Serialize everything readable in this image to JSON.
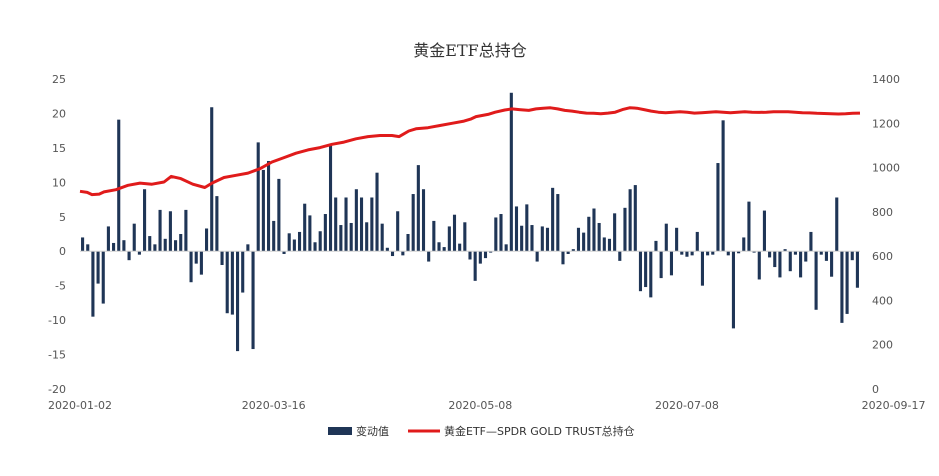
{
  "chart_data": {
    "type": "bar+line",
    "title": "黄金ETF总持仓",
    "left_axis": {
      "ylim": [
        -20,
        25
      ],
      "ticks": [
        "25",
        "20",
        "15",
        "10",
        "5",
        "0",
        "-5",
        "-10",
        "-15",
        "-20"
      ]
    },
    "right_axis": {
      "ylim": [
        0,
        1400
      ],
      "ticks": [
        "1400",
        "1200",
        "1000",
        "800",
        "600",
        "400",
        "200",
        "0"
      ]
    },
    "x_tick_labels": [
      "2020-01-02",
      "2020-03-16",
      "2020-05-08",
      "2020-07-08",
      "2020-09-17"
    ],
    "x_tick_indices": [
      0,
      37,
      77,
      117,
      157
    ],
    "legend_position": "bottom",
    "colors": {
      "bar": "#1f3556",
      "line": "#e01b1b"
    },
    "series": [
      {
        "name": "变动值",
        "kind": "bar",
        "axis": "left",
        "values": [
          2,
          1,
          -9.5,
          -4.7,
          -7.6,
          3.6,
          1.2,
          19.1,
          1.6,
          -1.3,
          4,
          -0.5,
          9,
          2.2,
          1,
          6,
          1.8,
          5.8,
          1.6,
          2.5,
          6,
          -4.5,
          -1.8,
          -3.4,
          3.3,
          20.9,
          8,
          -2,
          -9,
          -9.2,
          -14.5,
          -6,
          1,
          -14.2,
          15.8,
          11.8,
          13.1,
          4.4,
          10.5,
          -0.4,
          2.6,
          1.7,
          2.8,
          6.9,
          5.2,
          1.3,
          2.9,
          5.4,
          15.4,
          7.8,
          3.8,
          7.8,
          4.1,
          9,
          7.8,
          4.2,
          7.8,
          11.4,
          4,
          0.5,
          -0.7,
          5.8,
          -0.6,
          2.5,
          8.3,
          12.5,
          9,
          -1.5,
          4.4,
          1.3,
          0.6,
          3.6,
          5.3,
          1.1,
          4.2,
          -1.2,
          -4.3,
          -1.8,
          -1,
          -0.2,
          4.9,
          5.4,
          1,
          23,
          6.5,
          3.7,
          6.8,
          3.8,
          -1.5,
          3.6,
          3.4,
          9.2,
          8.3,
          -1.9,
          -0.4,
          0.3,
          3.4,
          2.7,
          5,
          6.2,
          4.1,
          2,
          1.8,
          5.5,
          -1.4,
          6.3,
          9,
          9.6,
          -5.8,
          -5.2,
          -6.7,
          1.5,
          -3.9,
          4,
          -3.5,
          3.4,
          -0.5,
          -0.8,
          -0.6,
          2.8,
          -5,
          -0.6,
          -0.5,
          12.8,
          19,
          -0.6,
          -11.2,
          -0.3,
          2,
          7.2,
          -0.2,
          -4.1,
          5.9,
          -0.9,
          -2.3,
          -3.8,
          0.3,
          -2.9,
          -0.5,
          -3.8,
          -1.5,
          2.8,
          -8.5,
          -0.5,
          -1.4,
          -3.7,
          7.8,
          -10.4,
          -9.1,
          -1.3,
          -5.3
        ],
        "x_index_offset": 0
      },
      {
        "name": "黄金ETF—SPDR GOLD TRUST总持仓",
        "kind": "line",
        "axis": "right",
        "points": [
          [
            0,
            893
          ],
          [
            3,
            888
          ],
          [
            5,
            878
          ],
          [
            8,
            880
          ],
          [
            10,
            890
          ],
          [
            15,
            900
          ],
          [
            20,
            920
          ],
          [
            25,
            930
          ],
          [
            30,
            925
          ],
          [
            35,
            935
          ],
          [
            38,
            960
          ],
          [
            42,
            950
          ],
          [
            47,
            925
          ],
          [
            52,
            910
          ],
          [
            55,
            930
          ],
          [
            60,
            955
          ],
          [
            65,
            965
          ],
          [
            70,
            975
          ],
          [
            75,
            995
          ],
          [
            80,
            1025
          ],
          [
            85,
            1045
          ],
          [
            90,
            1065
          ],
          [
            95,
            1080
          ],
          [
            100,
            1090
          ],
          [
            105,
            1105
          ],
          [
            110,
            1115
          ],
          [
            115,
            1130
          ],
          [
            120,
            1140
          ],
          [
            125,
            1145
          ],
          [
            130,
            1145
          ],
          [
            133,
            1140
          ],
          [
            137,
            1165
          ],
          [
            140,
            1175
          ],
          [
            145,
            1180
          ],
          [
            150,
            1190
          ],
          [
            155,
            1200
          ],
          [
            160,
            1210
          ],
          [
            163,
            1220
          ],
          [
            165,
            1230
          ],
          [
            170,
            1240
          ],
          [
            173,
            1250
          ],
          [
            177,
            1260
          ],
          [
            180,
            1265
          ],
          [
            183,
            1262
          ],
          [
            187,
            1258
          ],
          [
            190,
            1265
          ],
          [
            193,
            1268
          ],
          [
            196,
            1270
          ],
          [
            199,
            1265
          ],
          [
            202,
            1258
          ],
          [
            205,
            1255
          ],
          [
            208,
            1250
          ],
          [
            211,
            1246
          ],
          [
            214,
            1245
          ],
          [
            217,
            1243
          ],
          [
            220,
            1246
          ],
          [
            223,
            1250
          ],
          [
            226,
            1262
          ],
          [
            229,
            1270
          ],
          [
            232,
            1268
          ],
          [
            235,
            1262
          ],
          [
            238,
            1255
          ],
          [
            241,
            1250
          ],
          [
            244,
            1248
          ],
          [
            247,
            1250
          ],
          [
            250,
            1252
          ],
          [
            253,
            1250
          ],
          [
            256,
            1246
          ],
          [
            259,
            1248
          ],
          [
            262,
            1250
          ],
          [
            265,
            1252
          ],
          [
            268,
            1250
          ],
          [
            271,
            1248
          ],
          [
            274,
            1250
          ],
          [
            277,
            1252
          ],
          [
            280,
            1250
          ],
          [
            283,
            1249
          ],
          [
            286,
            1250
          ],
          [
            289,
            1252
          ],
          [
            292,
            1252
          ],
          [
            295,
            1252
          ],
          [
            298,
            1250
          ],
          [
            301,
            1248
          ],
          [
            304,
            1247
          ],
          [
            307,
            1245
          ],
          [
            310,
            1244
          ],
          [
            313,
            1243
          ],
          [
            316,
            1242
          ],
          [
            319,
            1243
          ],
          [
            322,
            1245
          ],
          [
            325,
            1246
          ]
        ]
      }
    ]
  }
}
